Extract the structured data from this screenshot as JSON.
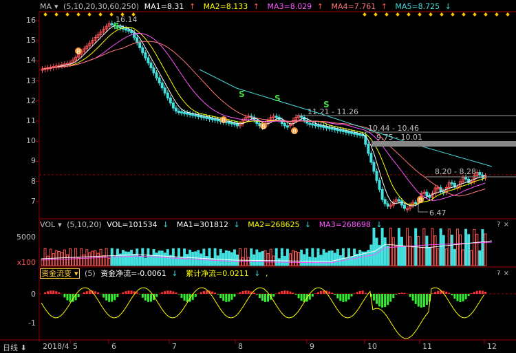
{
  "colors": {
    "up": "#ff5555",
    "down": "#44e0e0",
    "ma1": "#ffffff",
    "ma2": "#ffff00",
    "ma3": "#ff55ff",
    "ma4": "#ff7777",
    "ma5": "#44dddd",
    "buy": "#ff9933",
    "sell": "#44dd44",
    "axis": "#a00000",
    "grid": "#a00000"
  },
  "price_panel": {
    "indicator": "MA",
    "params": "(5,10,20,30,60,250)",
    "ma1": "MA1=8.31",
    "ma2": "MA2=8.133",
    "ma3": "MA3=8.029",
    "ma4": "MA4=7.761",
    "ma5": "MA5=8.725",
    "arrows": {
      "ma1": "↑",
      "ma2": "↑",
      "ma3": "↑",
      "ma4": "↑",
      "ma5": "↓"
    },
    "y_ticks": [
      "16",
      "15",
      "14",
      "13",
      "12",
      "11",
      "10",
      "9",
      "8",
      "7"
    ],
    "annotations": {
      "high": "16.14",
      "zone1": "11.21 - 11.26",
      "zone2": "10.44 - 10.46",
      "zone3": "9.75 - 10.01",
      "zone4": "8.20 - 8.28",
      "low": "6.47"
    },
    "buy_label": "B",
    "sell_label": "S"
  },
  "volume_panel": {
    "indicator": "VOL",
    "params": "(5,10,20)",
    "vol": "VOL=101534",
    "ma1": "MA1=301812",
    "ma2": "MA2=268625",
    "ma3": "MA3=268698",
    "y_ticks": [
      "5000"
    ],
    "unit": "x100"
  },
  "fund_panel": {
    "indicator": "资金流变",
    "params": "(5)",
    "net": "资金净流=-0.0061",
    "cum": "累计净流=0.0211",
    "y_ticks": [
      "0",
      "-1"
    ]
  },
  "x_axis": {
    "period": "日线",
    "labels": [
      "2018/4",
      "5",
      "6",
      "7",
      "8",
      "9",
      "10",
      "11",
      "12"
    ]
  },
  "corner_icons": [
    "?",
    "×"
  ]
}
